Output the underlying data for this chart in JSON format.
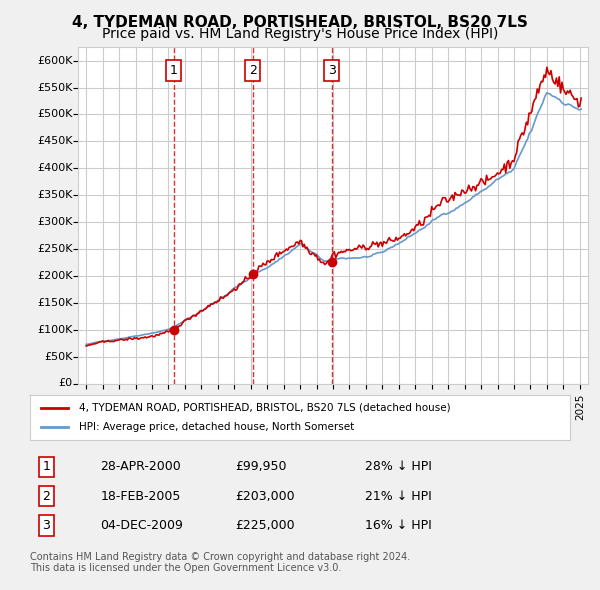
{
  "title": "4, TYDEMAN ROAD, PORTISHEAD, BRISTOL, BS20 7LS",
  "subtitle": "Price paid vs. HM Land Registry's House Price Index (HPI)",
  "title_fontsize": 11,
  "subtitle_fontsize": 10,
  "ylim": [
    0,
    625000
  ],
  "yticks": [
    0,
    50000,
    100000,
    150000,
    200000,
    250000,
    300000,
    350000,
    400000,
    450000,
    500000,
    550000,
    600000
  ],
  "ytick_labels": [
    "£0",
    "£50K",
    "£100K",
    "£150K",
    "£200K",
    "£250K",
    "£300K",
    "£350K",
    "£400K",
    "£450K",
    "£500K",
    "£550K",
    "£600K"
  ],
  "sale_dates": [
    2000.32,
    2005.12,
    2009.92
  ],
  "sale_prices": [
    99950,
    203000,
    225000
  ],
  "sale_labels": [
    "1",
    "2",
    "3"
  ],
  "vline_color": "#cc0000",
  "vline_style": "--",
  "sale_marker_color": "#cc0000",
  "hpi_line_color": "#6699cc",
  "price_line_color": "#cc0000",
  "legend_entries": [
    "4, TYDEMAN ROAD, PORTISHEAD, BRISTOL, BS20 7LS (detached house)",
    "HPI: Average price, detached house, North Somerset"
  ],
  "table_data": [
    [
      "1",
      "28-APR-2000",
      "£99,950",
      "28% ↓ HPI"
    ],
    [
      "2",
      "18-FEB-2005",
      "£203,000",
      "21% ↓ HPI"
    ],
    [
      "3",
      "04-DEC-2009",
      "£225,000",
      "16% ↓ HPI"
    ]
  ],
  "footnote": "Contains HM Land Registry data © Crown copyright and database right 2024.\nThis data is licensed under the Open Government Licence v3.0.",
  "background_color": "#f0f0f0",
  "plot_bg_color": "#ffffff",
  "grid_color": "#cccccc"
}
